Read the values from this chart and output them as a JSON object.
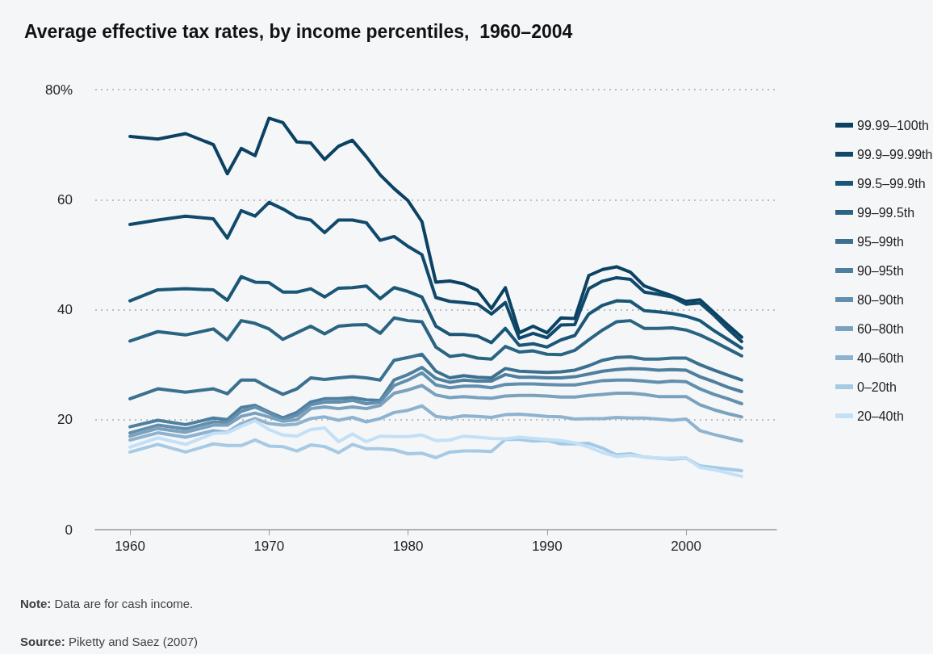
{
  "chart_data": {
    "type": "line",
    "title": "Average effective tax rates, by income percentiles,  1960–2004",
    "x": [
      1960,
      1962,
      1964,
      1966,
      1967,
      1968,
      1969,
      1970,
      1971,
      1972,
      1973,
      1974,
      1975,
      1976,
      1977,
      1978,
      1979,
      1980,
      1981,
      1982,
      1983,
      1984,
      1985,
      1986,
      1987,
      1988,
      1989,
      1990,
      1991,
      1992,
      1993,
      1994,
      1995,
      1996,
      1997,
      1998,
      1999,
      2000,
      2001,
      2002,
      2003,
      2004
    ],
    "series": [
      {
        "name": "99.99–100th",
        "color": "#0b4262",
        "values": [
          71.5,
          71,
          72,
          70,
          64.7,
          69.3,
          68,
          74.8,
          74,
          70.5,
          70.3,
          67.3,
          69.7,
          70.8,
          67.8,
          64.5,
          62,
          59.8,
          56,
          45,
          45.2,
          44.7,
          43.5,
          40.2,
          44,
          35.8,
          37,
          35.8,
          38.5,
          38.4,
          46.2,
          47.3,
          47.8,
          46.8,
          44.3,
          43.4,
          42.5,
          41.5,
          41.8,
          39.5,
          37.2,
          35
        ]
      },
      {
        "name": "99.9–99.99th",
        "color": "#10496b",
        "values": [
          55.5,
          56.3,
          57,
          56.5,
          53,
          58,
          57,
          59.5,
          58.3,
          56.8,
          56.3,
          54,
          56.3,
          56.3,
          55.8,
          52.6,
          53.3,
          51.5,
          50,
          42.2,
          41.5,
          41.3,
          41,
          39.2,
          41.3,
          34.8,
          35.7,
          34.9,
          37.2,
          37.3,
          43.8,
          45.2,
          45.8,
          45.5,
          43.2,
          42.8,
          42.3,
          41,
          41.2,
          39,
          36.5,
          34.2
        ]
      },
      {
        "name": "99.5–99.9th",
        "color": "#1a5676",
        "values": [
          41.6,
          43.6,
          43.8,
          43.6,
          41.7,
          46,
          45,
          44.9,
          43.2,
          43.2,
          43.8,
          42.3,
          43.9,
          44,
          44.3,
          42,
          44,
          43.3,
          42.3,
          37,
          35.5,
          35.5,
          35.2,
          34,
          36.6,
          33.5,
          33.8,
          33.2,
          34.5,
          35.3,
          39.2,
          40.8,
          41.6,
          41.5,
          39.8,
          39.6,
          39.3,
          38.8,
          38,
          36.2,
          34.6,
          33
        ]
      },
      {
        "name": "99–99.5th",
        "color": "#2a6481",
        "values": [
          34.3,
          36,
          35.4,
          36.5,
          34.5,
          38,
          37.5,
          36.5,
          34.6,
          35.8,
          37,
          35.6,
          37,
          37.2,
          37.3,
          35.7,
          38.5,
          38,
          37.8,
          33.2,
          31.5,
          31.8,
          31.2,
          31,
          33.3,
          32.3,
          32.5,
          31.9,
          31.8,
          32.6,
          34.5,
          36.3,
          37.8,
          38,
          36.6,
          36.6,
          36.7,
          36.3,
          35.4,
          34.2,
          32.9,
          31.6
        ]
      },
      {
        "name": "95–99th",
        "color": "#3b7090",
        "values": [
          23.8,
          25.6,
          25,
          25.6,
          24.7,
          27.2,
          27.2,
          25.8,
          24.6,
          25.6,
          27.6,
          27.3,
          27.6,
          27.8,
          27.6,
          27.2,
          30.8,
          31.3,
          31.9,
          28.8,
          27.6,
          28,
          27.7,
          27.6,
          29.3,
          28.8,
          28.7,
          28.6,
          28.7,
          29,
          29.8,
          30.8,
          31.3,
          31.4,
          31,
          31,
          31.2,
          31.2,
          30,
          29,
          28.1,
          27.2
        ]
      },
      {
        "name": "90–95th",
        "color": "#4f7f9e",
        "values": [
          18.7,
          19.9,
          19.1,
          20.3,
          20,
          22.2,
          22.6,
          21.4,
          20.3,
          21.3,
          23.2,
          23.8,
          23.8,
          24,
          23.6,
          23.5,
          27.2,
          28.2,
          29.5,
          27.5,
          26.8,
          27.2,
          27,
          27,
          28.2,
          27.7,
          27.7,
          27.6,
          27.6,
          27.8,
          28.3,
          28.8,
          29.1,
          29.3,
          29.2,
          29,
          29.1,
          29,
          27.8,
          26.9,
          25.9,
          25.1
        ]
      },
      {
        "name": "80–90th",
        "color": "#628fad",
        "values": [
          17.6,
          19,
          18.3,
          19.6,
          19.5,
          21.5,
          22.3,
          21.2,
          20,
          20.8,
          22.7,
          23.2,
          23.2,
          23.5,
          22.9,
          23.2,
          26.2,
          27.2,
          28.5,
          26.3,
          25.8,
          26.1,
          26.1,
          25.8,
          26.4,
          26.5,
          26.5,
          26.4,
          26.3,
          26.3,
          26.7,
          27.1,
          27.2,
          27.2,
          27,
          26.8,
          27,
          26.9,
          25.6,
          24.6,
          23.8,
          22.9
        ]
      },
      {
        "name": "60–80th",
        "color": "#7aa1bd",
        "values": [
          17,
          18.4,
          17.7,
          19,
          19,
          20.6,
          21.2,
          20.5,
          19.7,
          20,
          22,
          22.3,
          22,
          22.3,
          22,
          22.6,
          24.8,
          25.4,
          26.2,
          24.5,
          24,
          24.2,
          24,
          23.9,
          24.3,
          24.4,
          24.4,
          24.3,
          24.1,
          24.1,
          24.4,
          24.6,
          24.8,
          24.8,
          24.6,
          24.2,
          24.2,
          24.2,
          22.7,
          21.8,
          21.1,
          20.5
        ]
      },
      {
        "name": "40–60th",
        "color": "#8fb3cf",
        "values": [
          16.3,
          17.6,
          16.8,
          18,
          17.7,
          19.3,
          20.2,
          19.3,
          19,
          19.2,
          20.2,
          20.5,
          19.9,
          20.4,
          19.6,
          20.2,
          21.3,
          21.7,
          22.5,
          20.6,
          20.3,
          20.7,
          20.6,
          20.4,
          20.9,
          21,
          20.8,
          20.6,
          20.5,
          20.1,
          20.2,
          20.2,
          20.4,
          20.3,
          20.3,
          20.1,
          19.9,
          20.1,
          18,
          17.3,
          16.7,
          16.1
        ]
      },
      {
        "name": "0–20th",
        "color": "#a6c9e4",
        "values": [
          14.1,
          15.5,
          14.1,
          15.6,
          15.3,
          15.3,
          16.3,
          15.2,
          15.1,
          14.3,
          15.4,
          15.1,
          14,
          15.5,
          14.7,
          14.7,
          14.5,
          13.8,
          13.9,
          13.1,
          14.1,
          14.3,
          14.3,
          14.2,
          16.4,
          16.4,
          16.1,
          16.2,
          15.6,
          15.6,
          15.7,
          14.8,
          13.6,
          13.8,
          13.2,
          13,
          12.8,
          13,
          11.6,
          11.3,
          11,
          10.7
        ]
      },
      {
        "name": "20–40th",
        "color": "#c3e0f6",
        "values": [
          15,
          16.7,
          15.5,
          17.5,
          17.6,
          18.8,
          19.8,
          18.2,
          17.2,
          17,
          18.2,
          18.5,
          16,
          17.4,
          16,
          17,
          16.9,
          16.9,
          17.2,
          16.2,
          16.3,
          17,
          16.8,
          16.6,
          16.5,
          16.8,
          16.6,
          16.4,
          16.2,
          15.8,
          15,
          14,
          13.3,
          13.5,
          13.2,
          13,
          13,
          13.1,
          11.3,
          10.9,
          10.3,
          9.7
        ]
      }
    ],
    "xlim": [
      1957.5,
      2006.5
    ],
    "xticks": [
      1960,
      1970,
      1980,
      1990,
      2000
    ],
    "ylim": [
      0,
      80
    ],
    "yticks": [
      0,
      20,
      40,
      60,
      {
        "value": 80,
        "label": "80%"
      }
    ],
    "grid": "y",
    "legend": "right",
    "marker": "none",
    "line_style": "solid",
    "annotations": [
      "Note: Data are for cash income.",
      "Source: Piketty and Saez (2007)"
    ]
  }
}
